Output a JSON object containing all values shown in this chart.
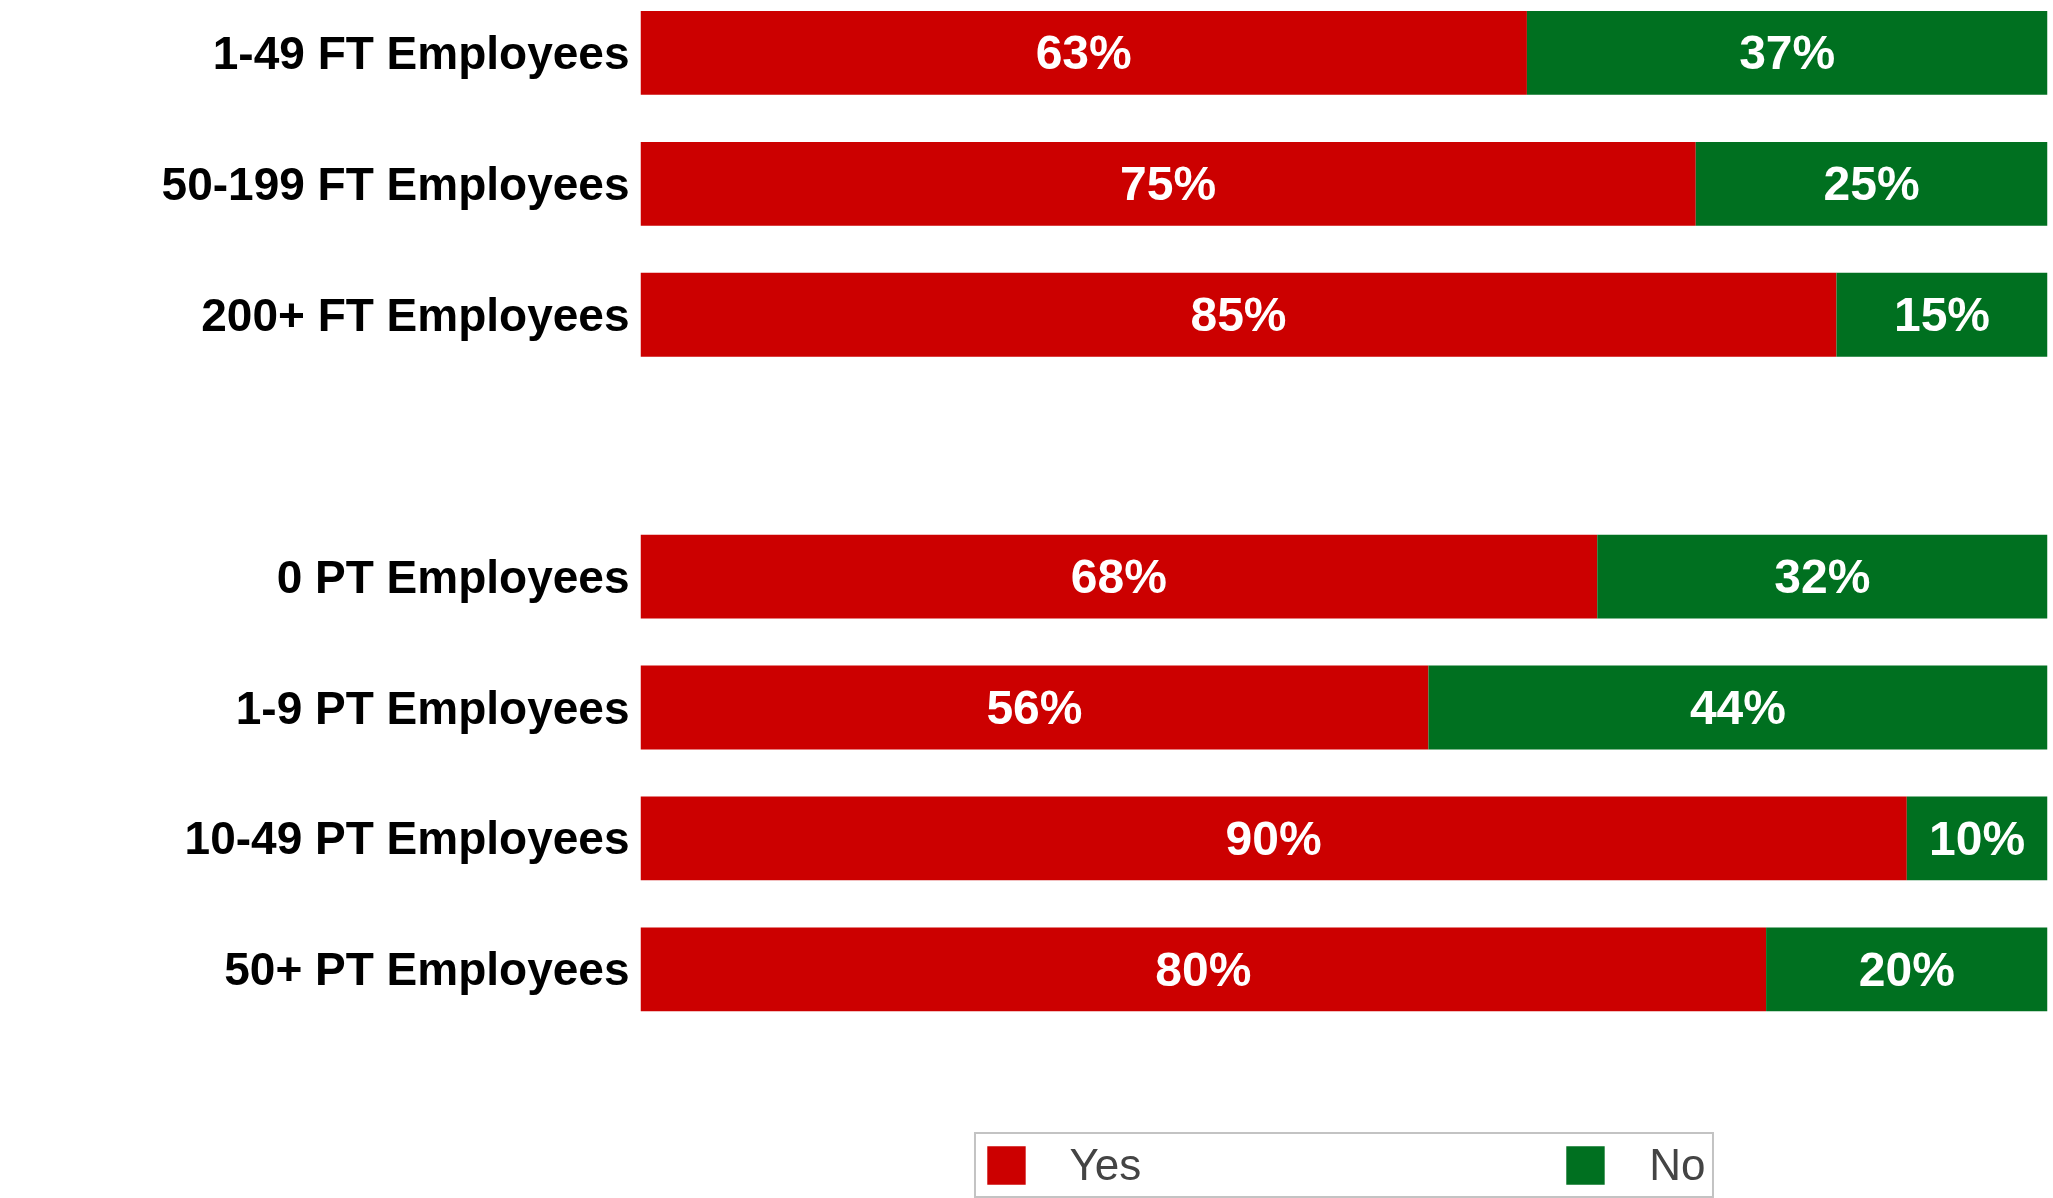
{
  "chart_data": {
    "type": "bar",
    "orientation": "horizontal",
    "stacked": true,
    "categories": [
      "1-49 FT Employees",
      "50-199 FT Employees",
      "200+ FT Employees",
      null,
      "0 PT Employees",
      "1-9 PT Employees",
      "10-49 PT Employees",
      "50+ PT Employees"
    ],
    "series": [
      {
        "name": "Yes",
        "color": "#cc0000",
        "values": [
          63,
          75,
          85,
          null,
          68,
          56,
          90,
          80
        ],
        "value_labels": [
          "63%",
          "75%",
          "85%",
          null,
          "68%",
          "56%",
          "90%",
          "80%"
        ]
      },
      {
        "name": "No",
        "color": "#007020",
        "values": [
          37,
          25,
          15,
          null,
          32,
          44,
          10,
          20
        ],
        "value_labels": [
          "37%",
          "25%",
          "15%",
          null,
          "32%",
          "44%",
          "10%",
          "20%"
        ]
      }
    ],
    "xlim": [
      0,
      100
    ],
    "tick_labels": "y",
    "grid": false,
    "legend": "bottom"
  }
}
